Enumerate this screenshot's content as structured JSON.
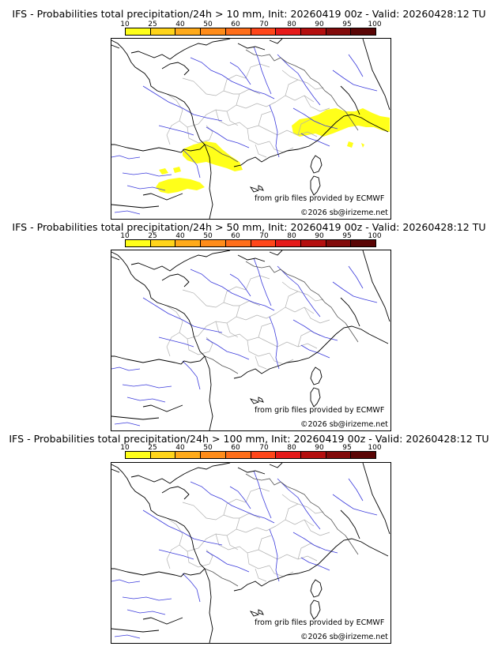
{
  "legend": {
    "ticks": [
      "10",
      "25",
      "40",
      "50",
      "60",
      "70",
      "80",
      "90",
      "95",
      "100"
    ],
    "colors": [
      "#ffff1a",
      "#ffd41a",
      "#ffaa1a",
      "#ff8c1a",
      "#ff6e1a",
      "#ff461a",
      "#e61a1a",
      "#b40f0f",
      "#820a0a",
      "#5a0505"
    ]
  },
  "panels": [
    {
      "title": "IFS - Probabilities total precipitation/24h > 10 mm, Init: 20260419 00z - Valid: 20260428:12 TU",
      "credit_source": "from grib files provided by ECMWF",
      "credit_copyright": "©2026 sb@irizeme.net",
      "has_precip": true
    },
    {
      "title": "IFS - Probabilities total precipitation/24h > 50 mm, Init: 20260419 00z - Valid: 20260428:12 TU",
      "credit_source": "from grib files provided by ECMWF",
      "credit_copyright": "©2026 sb@irizeme.net",
      "has_precip": false
    },
    {
      "title": "IFS - Probabilities total precipitation/24h > 100 mm, Init: 20260419 00z - Valid: 20260428:12 TU",
      "credit_source": "from grib files provided by ECMWF",
      "credit_copyright": "©2026 sb@irizeme.net",
      "has_precip": false
    }
  ]
}
